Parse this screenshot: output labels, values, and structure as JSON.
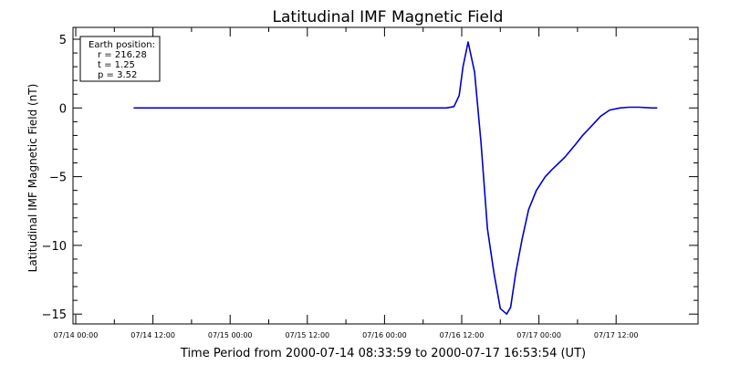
{
  "chart_data": {
    "type": "line",
    "title": "Latitudinal IMF Magnetic Field",
    "xlabel": "Time Period from 2000-07-14 08:33:59 to 2000-07-17 16:53:54 (UT)",
    "ylabel": "Latitudinal IMF Magnetic Field (nT)",
    "xlim": [
      0,
      84
    ],
    "ylim": [
      -16,
      6
    ],
    "yticks": [
      {
        "value": 5,
        "label": "5"
      },
      {
        "value": 0,
        "label": "0"
      },
      {
        "value": -5,
        "label": "−5"
      },
      {
        "value": -10,
        "label": "−10"
      },
      {
        "value": -15,
        "label": "−15"
      }
    ],
    "yminor": [
      4,
      3,
      2,
      1,
      -1,
      -2,
      -3,
      -4,
      -6,
      -7,
      -8,
      -9,
      -11,
      -12,
      -13,
      -14
    ],
    "xticks": [
      {
        "value": 0,
        "label": "07/14 00:00"
      },
      {
        "value": 12,
        "label": "07/14 12:00"
      },
      {
        "value": 24,
        "label": "07/15 00:00"
      },
      {
        "value": 36,
        "label": "07/15 12:00"
      },
      {
        "value": 48,
        "label": "07/16 00:00"
      },
      {
        "value": 60,
        "label": "07/16 12:00"
      },
      {
        "value": 72,
        "label": "07/17 00:00"
      },
      {
        "value": 84,
        "label": "07/17 12:00"
      }
    ],
    "xminor": [
      6,
      18,
      30,
      42,
      54,
      66,
      78
    ],
    "legend": {
      "placement": "top-left",
      "lines": [
        "Earth position:",
        "r = 216.28",
        "t = 1.25",
        "p = 3.52"
      ]
    },
    "series": [
      {
        "color": "#0000cc",
        "x": [
          9,
          20,
          35,
          47,
          55,
          57.6,
          58.8,
          59.6,
          60.2,
          61,
          62,
          63,
          64,
          65,
          66,
          67,
          67.6,
          68.4,
          69.4,
          70.4,
          71.6,
          73,
          74,
          76,
          77.6,
          78.8,
          80,
          81.6,
          83,
          84.6,
          86,
          87.6,
          89.6,
          90.4
        ],
        "y": [
          0,
          0,
          0,
          0,
          0,
          0,
          0.1,
          0.9,
          3.0,
          4.8,
          2.6,
          -2.5,
          -8.8,
          -12.0,
          -14.6,
          -15.0,
          -14.5,
          -12.0,
          -9.5,
          -7.4,
          -6.0,
          -5.0,
          -4.5,
          -3.6,
          -2.7,
          -2.0,
          -1.4,
          -0.6,
          -0.15,
          0,
          0.05,
          0.05,
          0,
          0
        ]
      }
    ]
  }
}
